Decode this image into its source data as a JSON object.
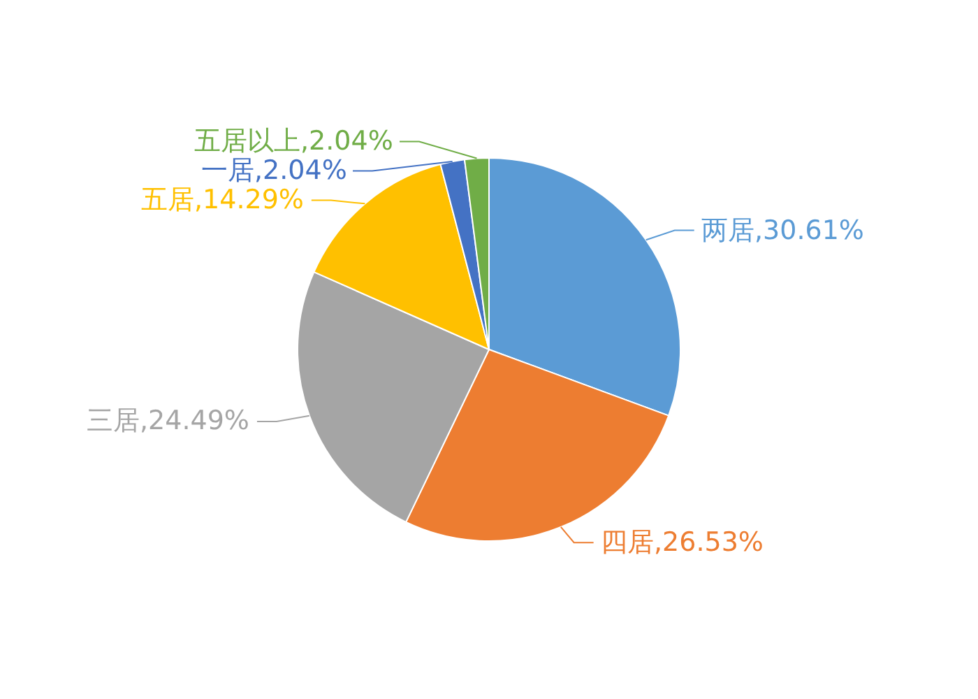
{
  "chart_data": {
    "type": "pie",
    "categories": [
      "两居",
      "四居",
      "三居",
      "五居",
      "一居",
      "五居以上"
    ],
    "values": [
      30.61,
      26.53,
      24.49,
      14.29,
      2.04,
      2.04
    ],
    "value_labels": [
      "30.61%",
      "26.53%",
      "24.49%",
      "14.29%",
      "2.04%",
      "2.04%"
    ],
    "colors": [
      "#5b9bd5",
      "#ed7d31",
      "#a5a5a5",
      "#ffc000",
      "#4472c4",
      "#70ad47"
    ],
    "legend": false
  }
}
